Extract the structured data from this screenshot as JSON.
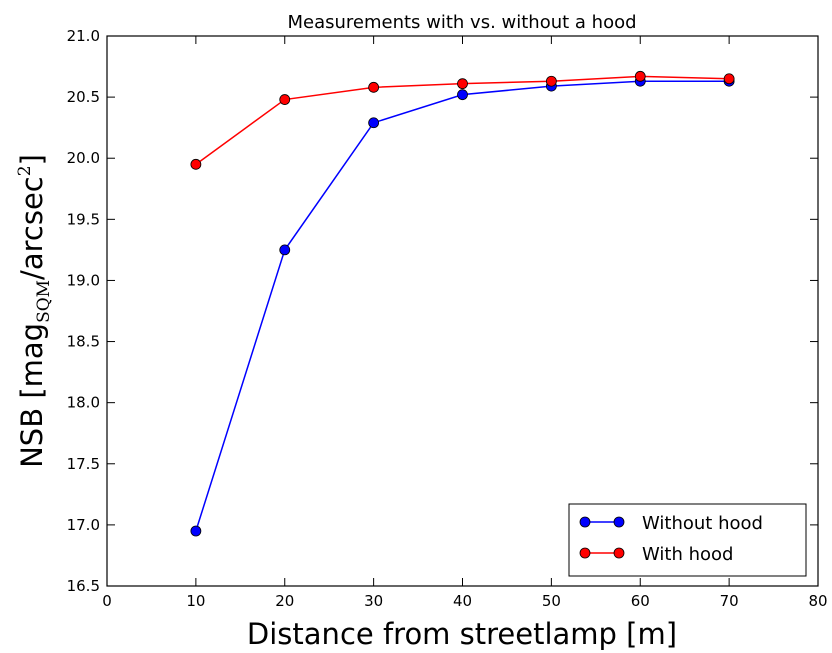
{
  "chart_data": {
    "type": "line",
    "title": "Measurements with vs. without a hood",
    "xlabel": "Distance from streetlamp [m]",
    "ylabel": {
      "prefix": "NSB [mag",
      "subscript": "SQM",
      "middle": "/arcsec",
      "superscript": "2",
      "suffix": "]"
    },
    "xlim": [
      0,
      80
    ],
    "ylim": [
      16.5,
      21.0
    ],
    "xticks": [
      "0",
      "10",
      "20",
      "30",
      "40",
      "50",
      "60",
      "70",
      "80"
    ],
    "yticks": [
      "16.5",
      "17.0",
      "17.5",
      "18.0",
      "18.5",
      "19.0",
      "19.5",
      "20.0",
      "20.5",
      "21.0"
    ],
    "grid": false,
    "legend_position": "lower-right",
    "x": [
      10,
      20,
      30,
      40,
      50,
      60,
      70
    ],
    "series": [
      {
        "name": "Without hood",
        "color": "#0000ff",
        "marker": "circle",
        "values": [
          16.95,
          19.25,
          20.29,
          20.52,
          20.59,
          20.63,
          20.63
        ]
      },
      {
        "name": "With hood",
        "color": "#ff0000",
        "marker": "circle",
        "values": [
          19.95,
          20.48,
          20.58,
          20.61,
          20.63,
          20.67,
          20.65
        ]
      }
    ]
  }
}
